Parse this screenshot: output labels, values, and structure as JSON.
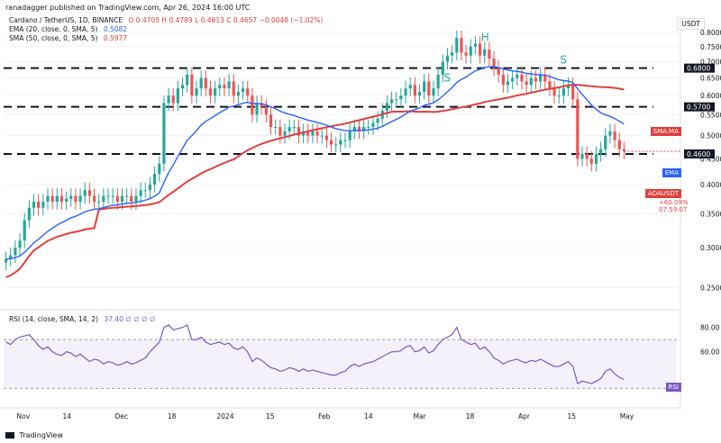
{
  "header": {
    "published": "ranadagger published on TradingView.com, Apr 26, 2024 16:00 UTC"
  },
  "legend": {
    "symbol": "Cardano / TetherUS, 1D, BINANCE",
    "ohlc": "O 0.4705  H 0.4789  L 0.4613  C 0.4657  −0.0048 (−1.02%)",
    "ema": "EMA (20, close, 0, SMA, 5)",
    "ema_value": "0.5082",
    "sma": "SMA (50, close, 0, SMA, 5)",
    "sma_value": "0.5977",
    "rsi": "RSI (14, close, SMA, 14, 2)",
    "rsi_values": "37.40  ∅  ∅  ∅  ∅"
  },
  "currency": "USDT",
  "branding": "TradingView",
  "colors": {
    "up": "#26a69a",
    "down": "#ef5350",
    "ema": "#2962ff",
    "sma": "#e0403c",
    "rsi": "#7e57c2",
    "level_line": "#131722",
    "price_tag": "#e0403c"
  },
  "tags": {
    "sma_tag": "SMA:MA",
    "ema_tag": "EMA",
    "price_tag": "ADAUSDT",
    "countdown": "+60.09%",
    "timer": "07:59:07",
    "rsi_tag": "RSI"
  },
  "chart_data": [
    {
      "type": "candlestick",
      "title": "Cardano / TetherUS, 1D, BINANCE",
      "y_scale": "log",
      "ylim": [
        0.23,
        0.82
      ],
      "y_ticks": [
        "0.8000",
        "0.7500",
        "0.7000",
        "0.6500",
        "0.6000",
        "0.5500",
        "0.5000",
        "0.4500",
        "0.4000",
        "0.3500",
        "0.3000",
        "0.2500"
      ],
      "highlighted_levels": [
        {
          "label": "0.6800",
          "value": 0.68
        },
        {
          "label": "0.5700",
          "value": 0.57
        },
        {
          "label": "0.4600",
          "value": 0.46
        }
      ],
      "last_close": 0.4657,
      "annotations": [
        {
          "text": "S",
          "x": "2024-02-26",
          "y": 0.64
        },
        {
          "text": "H",
          "x": "2024-03-05",
          "y": 0.77
        },
        {
          "text": "S",
          "x": "2024-03-29",
          "y": 0.695
        }
      ],
      "x_ticks": [
        "Nov",
        "14",
        "Dec",
        "18",
        "2024",
        "15",
        "Feb",
        "14",
        "Mar",
        "18",
        "Apr",
        "15",
        "May"
      ],
      "series": [
        {
          "name": "EMA (20, close, 0, SMA, 5)",
          "last": 0.5082
        },
        {
          "name": "SMA (50, close, 0, SMA, 5)",
          "last": 0.5977
        }
      ],
      "approx_closes": [
        0.285,
        0.29,
        0.3,
        0.31,
        0.34,
        0.36,
        0.37,
        0.36,
        0.37,
        0.38,
        0.37,
        0.38,
        0.37,
        0.375,
        0.38,
        0.37,
        0.38,
        0.39,
        0.38,
        0.37,
        0.37,
        0.38,
        0.38,
        0.38,
        0.37,
        0.38,
        0.38,
        0.37,
        0.38,
        0.39,
        0.39,
        0.4,
        0.42,
        0.44,
        0.58,
        0.6,
        0.58,
        0.62,
        0.63,
        0.66,
        0.6,
        0.62,
        0.65,
        0.62,
        0.6,
        0.62,
        0.63,
        0.62,
        0.64,
        0.6,
        0.61,
        0.62,
        0.6,
        0.55,
        0.58,
        0.57,
        0.55,
        0.52,
        0.52,
        0.5,
        0.51,
        0.52,
        0.52,
        0.5,
        0.51,
        0.5,
        0.51,
        0.5,
        0.5,
        0.49,
        0.48,
        0.48,
        0.49,
        0.49,
        0.51,
        0.52,
        0.51,
        0.52,
        0.52,
        0.53,
        0.54,
        0.56,
        0.58,
        0.59,
        0.59,
        0.6,
        0.62,
        0.63,
        0.6,
        0.61,
        0.64,
        0.6,
        0.62,
        0.66,
        0.7,
        0.72,
        0.73,
        0.78,
        0.73,
        0.72,
        0.75,
        0.76,
        0.72,
        0.74,
        0.71,
        0.68,
        0.66,
        0.63,
        0.64,
        0.65,
        0.66,
        0.64,
        0.63,
        0.65,
        0.64,
        0.66,
        0.64,
        0.62,
        0.6,
        0.6,
        0.62,
        0.63,
        0.59,
        0.45,
        0.46,
        0.45,
        0.44,
        0.46,
        0.47,
        0.5,
        0.51,
        0.49,
        0.47,
        0.4657
      ]
    },
    {
      "type": "line",
      "title": "RSI (14, close, SMA, 14, 2)",
      "ylim": [
        20,
        90
      ],
      "y_ticks": [
        "80.00",
        "60.00"
      ],
      "bands": [
        70,
        30
      ],
      "last": 37.4,
      "approx_values": [
        68,
        66,
        70,
        72,
        73,
        74,
        70,
        65,
        62,
        64,
        60,
        58,
        57,
        60,
        59,
        56,
        58,
        55,
        52,
        54,
        53,
        50,
        52,
        51,
        49,
        50,
        52,
        50,
        51,
        53,
        55,
        60,
        64,
        68,
        80,
        82,
        78,
        79,
        80,
        82,
        70,
        70,
        72,
        68,
        66,
        67,
        68,
        66,
        67,
        63,
        62,
        64,
        60,
        52,
        55,
        53,
        50,
        47,
        46,
        44,
        45,
        47,
        46,
        44,
        46,
        44,
        45,
        44,
        43,
        42,
        41,
        41,
        43,
        44,
        48,
        50,
        48,
        50,
        51,
        52,
        54,
        56,
        58,
        60,
        60,
        61,
        64,
        65,
        60,
        61,
        64,
        59,
        61,
        66,
        70,
        72,
        74,
        80,
        70,
        68,
        66,
        67,
        62,
        64,
        60,
        55,
        53,
        50,
        52,
        53,
        54,
        52,
        51,
        53,
        52,
        54,
        52,
        50,
        48,
        48,
        50,
        52,
        48,
        34,
        36,
        35,
        34,
        36,
        38,
        44,
        46,
        42,
        39,
        37.4
      ]
    }
  ]
}
